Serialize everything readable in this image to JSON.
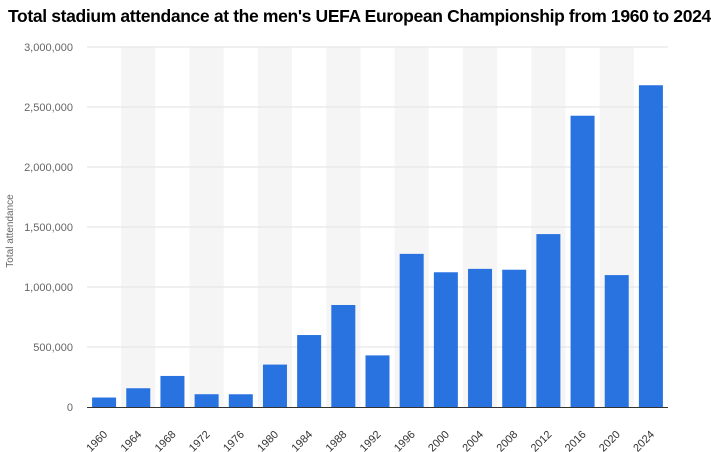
{
  "chart_data": {
    "type": "bar",
    "title": "Total stadium attendance at the men's UEFA European Championship from 1960 to 2024",
    "xlabel": "",
    "ylabel": "Total attendance",
    "ylim": [
      0,
      3000000
    ],
    "yticks": [
      0,
      500000,
      1000000,
      1500000,
      2000000,
      2500000,
      3000000
    ],
    "ytick_labels": [
      "0",
      "500,000",
      "1,000,000",
      "1,500,000",
      "2,000,000",
      "2,500,000",
      "3,000,000"
    ],
    "categories": [
      "1960",
      "1964",
      "1968",
      "1972",
      "1976",
      "1980",
      "1984",
      "1988",
      "1992",
      "1996",
      "2000",
      "2004",
      "2008",
      "2012",
      "2016",
      "2020",
      "2024"
    ],
    "values": [
      78958,
      156253,
      258860,
      106510,
      106087,
      353550,
      599669,
      850058,
      430111,
      1276174,
      1122833,
      1151193,
      1143990,
      1440888,
      2427303,
      1099278,
      2681288
    ],
    "grid": true,
    "bar_color": "#2873e0",
    "band_color": "#f5f5f5"
  }
}
